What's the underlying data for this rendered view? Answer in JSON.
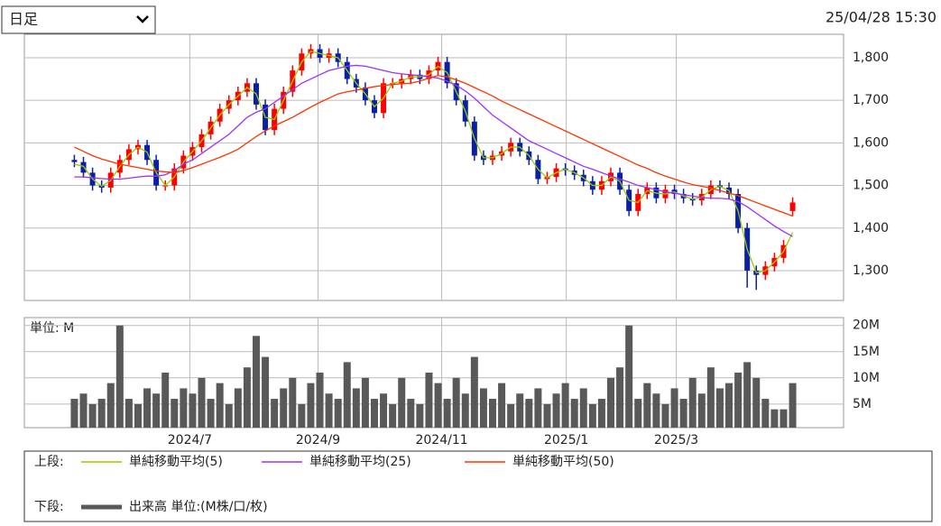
{
  "header": {
    "select": "日足",
    "timestamp": "25/04/28 15:30"
  },
  "chart_data": [
    {
      "type": "candlestick",
      "xlim": [
        -5.5,
        84.6
      ],
      "ylim": [
        1230,
        1855
      ],
      "yticks": [
        {
          "value": 1300,
          "label": "1,300"
        },
        {
          "value": 1400,
          "label": "1,400"
        },
        {
          "value": 1500,
          "label": "1,500"
        },
        {
          "value": 1600,
          "label": "1,600"
        },
        {
          "value": 1700,
          "label": "1,700"
        },
        {
          "value": 1800,
          "label": "1,800"
        }
      ],
      "grid": true,
      "up_color": "#ff0000",
      "down_color": "#0a1fa8",
      "open": [
        1560,
        1555,
        1530,
        1500,
        1495,
        1530,
        1560,
        1585,
        1595,
        1560,
        1500,
        1500,
        1540,
        1570,
        1590,
        1620,
        1650,
        1680,
        1700,
        1720,
        1740,
        1690,
        1630,
        1680,
        1720,
        1770,
        1810,
        1820,
        1800,
        1810,
        1790,
        1750,
        1730,
        1700,
        1670,
        1740,
        1740,
        1750,
        1760,
        1750,
        1770,
        1790,
        1740,
        1700,
        1650,
        1570,
        1560,
        1570,
        1580,
        1600,
        1580,
        1560,
        1515,
        1520,
        1540,
        1535,
        1525,
        1510,
        1490,
        1510,
        1530,
        1490,
        1440,
        1480,
        1495,
        1470,
        1490,
        1480,
        1470,
        1465,
        1480,
        1500,
        1495,
        1480,
        1400,
        1300,
        1290,
        1310,
        1330,
        1440
      ],
      "high": [
        1572,
        1567,
        1542,
        1512,
        1542,
        1572,
        1597,
        1607,
        1607,
        1572,
        1512,
        1552,
        1582,
        1602,
        1632,
        1662,
        1692,
        1712,
        1732,
        1752,
        1752,
        1702,
        1692,
        1732,
        1782,
        1822,
        1832,
        1832,
        1822,
        1822,
        1802,
        1762,
        1742,
        1712,
        1752,
        1752,
        1762,
        1772,
        1772,
        1782,
        1802,
        1802,
        1752,
        1712,
        1662,
        1582,
        1582,
        1592,
        1612,
        1612,
        1592,
        1572,
        1532,
        1552,
        1552,
        1547,
        1537,
        1522,
        1522,
        1542,
        1542,
        1502,
        1492,
        1507,
        1507,
        1502,
        1502,
        1492,
        1482,
        1492,
        1512,
        1512,
        1507,
        1492,
        1412,
        1312,
        1322,
        1342,
        1372,
        1472
      ],
      "low": [
        1543,
        1518,
        1488,
        1483,
        1483,
        1518,
        1548,
        1573,
        1548,
        1488,
        1488,
        1488,
        1528,
        1558,
        1578,
        1608,
        1638,
        1668,
        1688,
        1708,
        1678,
        1618,
        1618,
        1668,
        1708,
        1758,
        1798,
        1788,
        1788,
        1778,
        1738,
        1718,
        1688,
        1658,
        1658,
        1728,
        1728,
        1738,
        1738,
        1738,
        1758,
        1728,
        1688,
        1638,
        1558,
        1548,
        1548,
        1558,
        1568,
        1568,
        1548,
        1503,
        1503,
        1508,
        1523,
        1513,
        1498,
        1478,
        1478,
        1498,
        1478,
        1428,
        1428,
        1468,
        1458,
        1458,
        1468,
        1458,
        1453,
        1453,
        1468,
        1483,
        1468,
        1388,
        1260,
        1255,
        1278,
        1298,
        1318,
        1428
      ],
      "close": [
        1555,
        1530,
        1500,
        1495,
        1530,
        1560,
        1585,
        1595,
        1560,
        1500,
        1500,
        1540,
        1570,
        1590,
        1620,
        1650,
        1680,
        1700,
        1720,
        1740,
        1690,
        1630,
        1680,
        1720,
        1770,
        1810,
        1820,
        1800,
        1810,
        1790,
        1750,
        1730,
        1700,
        1670,
        1740,
        1740,
        1750,
        1760,
        1750,
        1770,
        1790,
        1740,
        1700,
        1650,
        1570,
        1560,
        1570,
        1580,
        1600,
        1580,
        1560,
        1515,
        1520,
        1540,
        1535,
        1525,
        1510,
        1490,
        1510,
        1530,
        1490,
        1440,
        1480,
        1495,
        1470,
        1490,
        1480,
        1470,
        1465,
        1480,
        1500,
        1495,
        1480,
        1400,
        1300,
        1290,
        1310,
        1330,
        1360,
        1460
      ],
      "series": [
        {
          "name": "単純移動平均(5)",
          "color": "#99cc00",
          "values": [
            1550,
            1545,
            1515,
            1498,
            1512,
            1545,
            1572,
            1590,
            1578,
            1530,
            1500,
            1520,
            1555,
            1580,
            1605,
            1635,
            1665,
            1690,
            1710,
            1730,
            1715,
            1660,
            1655,
            1700,
            1745,
            1790,
            1815,
            1810,
            1805,
            1800,
            1770,
            1740,
            1715,
            1685,
            1705,
            1740,
            1745,
            1755,
            1755,
            1760,
            1780,
            1765,
            1720,
            1675,
            1610,
            1565,
            1565,
            1575,
            1590,
            1590,
            1570,
            1538,
            1518,
            1530,
            1538,
            1530,
            1518,
            1500,
            1500,
            1520,
            1510,
            1465,
            1460,
            1488,
            1482,
            1480,
            1485,
            1475,
            1468,
            1472,
            1490,
            1498,
            1488,
            1440,
            1350,
            1295,
            1300,
            1320,
            1345,
            1390
          ]
        },
        {
          "name": "単純移動平均(25)",
          "color": "#9933ff",
          "values": [
            1520,
            1520,
            1518,
            1516,
            1515,
            1515,
            1517,
            1520,
            1522,
            1522,
            1525,
            1535,
            1550,
            1560,
            1575,
            1590,
            1605,
            1620,
            1640,
            1660,
            1672,
            1680,
            1695,
            1710,
            1725,
            1740,
            1750,
            1760,
            1770,
            1775,
            1780,
            1782,
            1780,
            1775,
            1770,
            1765,
            1762,
            1760,
            1758,
            1755,
            1752,
            1745,
            1735,
            1722,
            1705,
            1685,
            1665,
            1650,
            1635,
            1620,
            1605,
            1595,
            1585,
            1575,
            1565,
            1555,
            1545,
            1538,
            1530,
            1522,
            1515,
            1508,
            1500,
            1495,
            1490,
            1485,
            1482,
            1478,
            1475,
            1472,
            1470,
            1470,
            1468,
            1462,
            1450,
            1435,
            1420,
            1405,
            1392,
            1380
          ]
        },
        {
          "name": "単純移動平均(50)",
          "color": "#ff3300",
          "values": [
            1590,
            1580,
            1570,
            1562,
            1556,
            1550,
            1546,
            1542,
            1538,
            1534,
            1532,
            1530,
            1535,
            1542,
            1550,
            1558,
            1566,
            1575,
            1585,
            1600,
            1615,
            1628,
            1640,
            1650,
            1660,
            1672,
            1684,
            1695,
            1705,
            1715,
            1720,
            1724,
            1728,
            1732,
            1735,
            1737,
            1739,
            1740,
            1745,
            1752,
            1758,
            1755,
            1748,
            1740,
            1730,
            1720,
            1710,
            1698,
            1688,
            1678,
            1668,
            1658,
            1648,
            1638,
            1628,
            1618,
            1608,
            1598,
            1588,
            1578,
            1568,
            1558,
            1548,
            1540,
            1530,
            1522,
            1515,
            1508,
            1502,
            1498,
            1494,
            1488,
            1482,
            1476,
            1468,
            1460,
            1452,
            1444,
            1436,
            1428
          ]
        }
      ]
    },
    {
      "type": "bar",
      "unit_label": "単位: M",
      "color": "#595959",
      "xlim": [
        -5.5,
        84.6
      ],
      "ylim": [
        0.5,
        21.5
      ],
      "xticks": [
        {
          "value": 12.7,
          "label": "2024/7"
        },
        {
          "value": 26.8,
          "label": "2024/9"
        },
        {
          "value": 40.4,
          "label": "2024/11"
        },
        {
          "value": 54.1,
          "label": "2025/1"
        },
        {
          "value": 66.2,
          "label": "2025/3"
        }
      ],
      "yticks": [
        {
          "value": 5,
          "label": "5M"
        },
        {
          "value": 10,
          "label": "10M"
        },
        {
          "value": 15,
          "label": "15M"
        },
        {
          "value": 20,
          "label": "20M"
        }
      ],
      "grid": true,
      "values": [
        6,
        7,
        5,
        6,
        9,
        20,
        6,
        5,
        8,
        7,
        11,
        6,
        8,
        7,
        10,
        6,
        9,
        5,
        8,
        12,
        18,
        14,
        6,
        8,
        10,
        5,
        9,
        11,
        7,
        6,
        13,
        8,
        10,
        6,
        7,
        5,
        10,
        6,
        5,
        11,
        9,
        6,
        10,
        7,
        14,
        8,
        6,
        9,
        5,
        7,
        6,
        8,
        5,
        7,
        9,
        6,
        8,
        5,
        6,
        10,
        12,
        20,
        6,
        9,
        7,
        5,
        8,
        6,
        10,
        7,
        12,
        8,
        9,
        11,
        13,
        10,
        6,
        4,
        4,
        9
      ]
    }
  ],
  "legend": {
    "upper_label": "上段:",
    "lower_label": "下段:",
    "volume_label": "出来高 単位:(M株/口/枚)"
  }
}
